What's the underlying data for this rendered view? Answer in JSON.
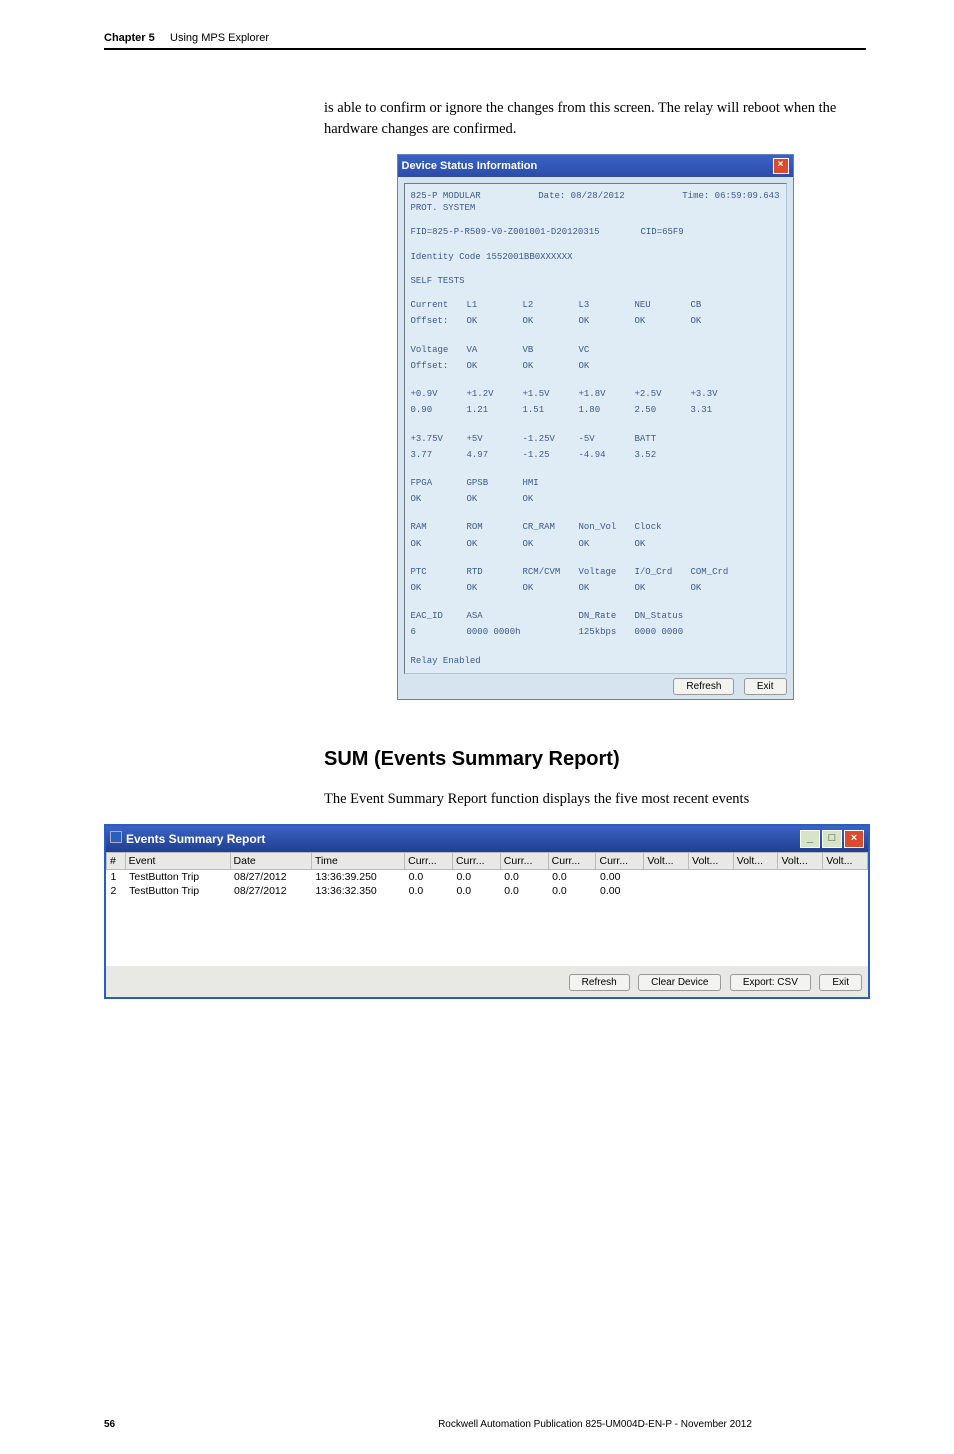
{
  "header": {
    "chapter_label": "Chapter 5",
    "chapter_title": "Using MPS Explorer"
  },
  "intro_text": "is able to confirm or ignore the changes from this screen. The relay will reboot when the hardware changes are confirmed.",
  "device_status": {
    "title": "Device Status Information",
    "lines": {
      "l1": "825-P MODULAR",
      "l2": "PROT. SYSTEM",
      "date_lbl": "Date: 08/28/2012",
      "time_lbl": "Time: 06:59:09.643",
      "fid": "FID=825-P-R509-V0-Z001001-D20120315",
      "cid": "CID=65F9",
      "identity": "Identity Code 1552001BB0XXXXXX",
      "self": "SELF TESTS",
      "r1": [
        "Current",
        "L1",
        "L2",
        "L3",
        "NEU",
        "CB"
      ],
      "r1b": [
        "Offset:",
        "OK",
        "OK",
        "OK",
        "OK",
        "OK"
      ],
      "r2": [
        "Voltage",
        "VA",
        "VB",
        "VC"
      ],
      "r2b": [
        "Offset:",
        "OK",
        "OK",
        "OK"
      ],
      "r3": [
        "+0.9V",
        "+1.2V",
        "+1.5V",
        "+1.8V",
        "+2.5V",
        "+3.3V"
      ],
      "r3b": [
        " 0.90",
        " 1.21",
        " 1.51",
        " 1.80",
        " 2.50",
        " 3.31"
      ],
      "r4": [
        "+3.75V",
        "+5V",
        "-1.25V",
        "-5V",
        "BATT"
      ],
      "r4b": [
        " 3.77",
        " 4.97",
        "-1.25",
        "-4.94",
        " 3.52"
      ],
      "r5": [
        "FPGA",
        "GPSB",
        "HMI"
      ],
      "r5b": [
        "OK",
        "OK",
        "OK"
      ],
      "r6": [
        "RAM",
        "ROM",
        "CR_RAM",
        "Non_Vol",
        "Clock"
      ],
      "r6b": [
        "OK",
        "OK",
        "OK",
        "OK",
        "OK"
      ],
      "r7": [
        "PTC",
        "RTD",
        "RCM/CVM",
        "Voltage",
        "I/O_Crd",
        "COM_Crd"
      ],
      "r7b": [
        "OK",
        "OK",
        "OK",
        "OK",
        "OK",
        "OK"
      ],
      "r8": [
        "EAC_ID",
        "ASA",
        "",
        "DN_Rate",
        "DN_Status"
      ],
      "r8b": [
        "6",
        "0000 0000h",
        "",
        "125kbps",
        "0000 0000"
      ],
      "relay": "Relay Enabled"
    },
    "btn_refresh": "Refresh",
    "btn_exit": "Exit"
  },
  "section_heading": "SUM (Events Summary Report)",
  "section_body": "The Event Summary Report function displays the five most recent events",
  "events": {
    "title": "Events Summary Report",
    "columns": [
      "#",
      "Event",
      "Date",
      "Time",
      "Curr...",
      "Curr...",
      "Curr...",
      "Curr...",
      "Curr...",
      "Volt...",
      "Volt...",
      "Volt...",
      "Volt...",
      "Volt..."
    ],
    "rows": [
      [
        "1",
        "TestButton Trip",
        "08/27/2012",
        "13:36:39.250",
        "0.0",
        "0.0",
        "0.0",
        "0.0",
        "0.00",
        "",
        "",
        "",
        "",
        ""
      ],
      [
        "2",
        "TestButton Trip",
        "08/27/2012",
        "13:36:32.350",
        "0.0",
        "0.0",
        "0.0",
        "0.0",
        "0.00",
        "",
        "",
        "",
        "",
        ""
      ]
    ],
    "btn_refresh": "Refresh",
    "btn_clear": "Clear Device",
    "btn_export": "Export: CSV",
    "btn_exit": "Exit"
  },
  "footer": {
    "page": "56",
    "pub": "Rockwell Automation Publication 825-UM004D-EN-P - November 2012"
  }
}
